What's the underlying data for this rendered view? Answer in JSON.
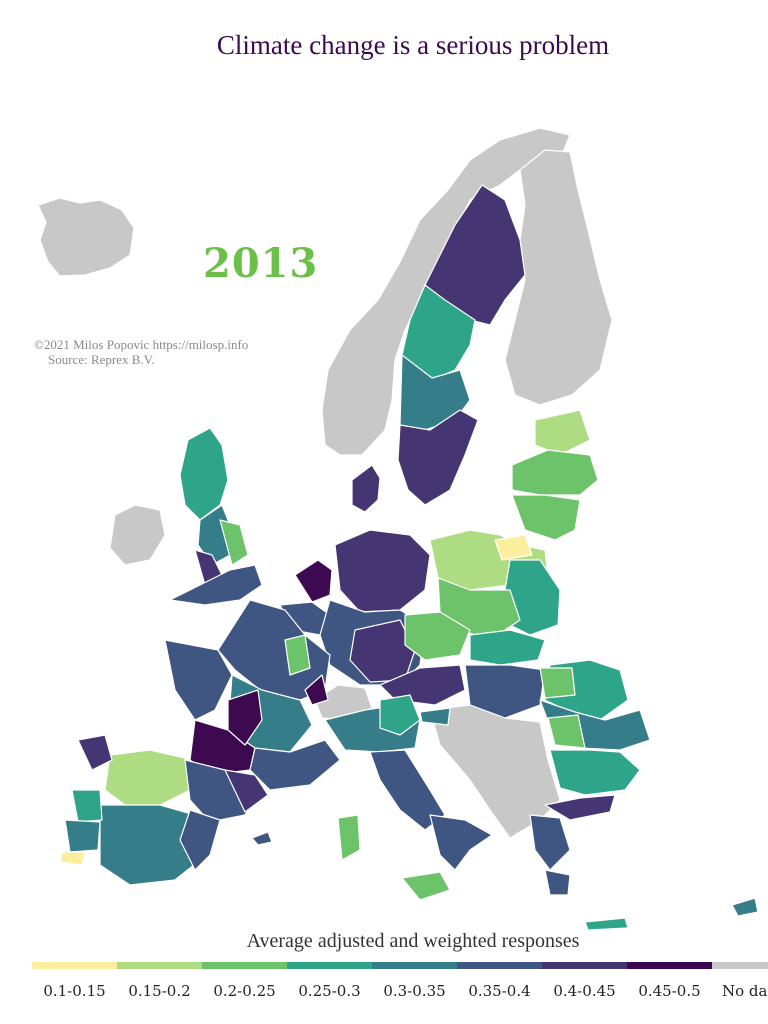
{
  "title": "Climate change is a serious problem",
  "year": "2013",
  "credit": {
    "line1": "©2021 Milos Popovic https://milosp.info",
    "line2": "Source: Reprex B.V."
  },
  "legend": {
    "title": "Average adjusted and weighted responses",
    "items": [
      {
        "label": "0.1-0.15",
        "color": "#fbee9d"
      },
      {
        "label": "0.15-0.2",
        "color": "#aedc82"
      },
      {
        "label": "0.2-0.25",
        "color": "#6cc36a"
      },
      {
        "label": "0.25-0.3",
        "color": "#2ea489"
      },
      {
        "label": "0.3-0.35",
        "color": "#367d8a"
      },
      {
        "label": "0.35-0.4",
        "color": "#3f5683"
      },
      {
        "label": "0.4-0.45",
        "color": "#453673"
      },
      {
        "label": "0.45-0.5",
        "color": "#3d0a52"
      },
      {
        "label": "No data",
        "color": "#c8c8c8"
      }
    ]
  }
}
